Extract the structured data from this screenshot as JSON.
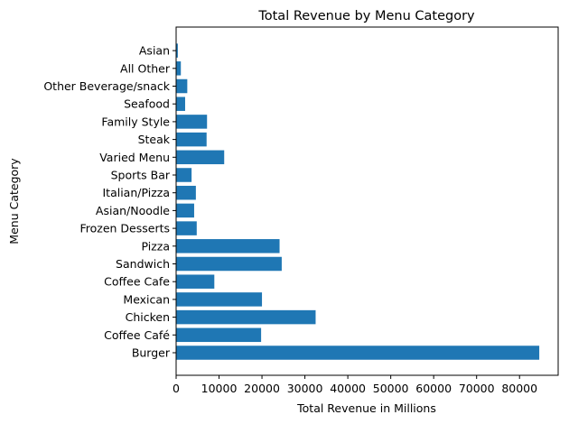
{
  "chart_data": {
    "type": "bar",
    "orientation": "horizontal",
    "title": "Total Revenue by Menu Category",
    "xlabel": "Total Revenue in Millions",
    "ylabel": "Menu Category",
    "categories": [
      "Burger",
      "Coffee Café",
      "Chicken",
      "Mexican",
      "Coffee Cafe",
      "Sandwich",
      "Pizza",
      "Frozen Desserts",
      "Asian/Noodle",
      "Italian/Pizza",
      "Sports Bar",
      "Varied Menu",
      "Steak",
      "Family Style",
      "Seafood",
      "Other Beverage/snack",
      "All Other",
      "Asian"
    ],
    "values": [
      84600,
      19800,
      32500,
      20000,
      8900,
      24600,
      24100,
      4800,
      4200,
      4600,
      3600,
      11200,
      7100,
      7200,
      2100,
      2600,
      1100,
      400
    ],
    "xlim": [
      0,
      89000
    ],
    "xticks": [
      0,
      10000,
      20000,
      30000,
      40000,
      50000,
      60000,
      70000,
      80000
    ],
    "grid": false,
    "bar_color": "#1f77b4"
  }
}
